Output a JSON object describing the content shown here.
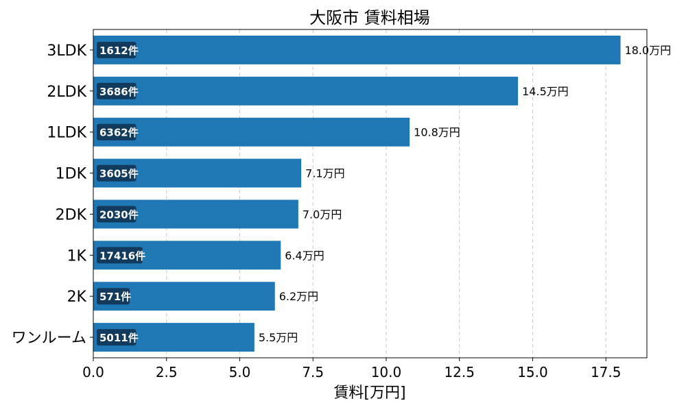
{
  "chart_data": {
    "type": "bar",
    "orientation": "horizontal",
    "title": "大阪市 賃料相場",
    "xlabel": "賃料[万円]",
    "ylabel": "",
    "xlim": [
      0,
      18.9
    ],
    "xticks": [
      0.0,
      2.5,
      5.0,
      7.5,
      10.0,
      12.5,
      15.0,
      17.5
    ],
    "xtick_labels": [
      "0.0",
      "2.5",
      "5.0",
      "7.5",
      "10.0",
      "12.5",
      "15.0",
      "17.5"
    ],
    "grid": "vertical dashed",
    "bar_color": "#1f77b4",
    "count_badge_color": "#123a5c",
    "categories": [
      "3LDK",
      "2LDK",
      "1LDK",
      "1DK",
      "2DK",
      "1K",
      "2K",
      "ワンルーム"
    ],
    "values": [
      18.0,
      14.5,
      10.8,
      7.1,
      7.0,
      6.4,
      6.2,
      5.5
    ],
    "value_labels": [
      "18.0万円",
      "14.5万円",
      "10.8万円",
      "7.1万円",
      "7.0万円",
      "6.4万円",
      "6.2万円",
      "5.5万円"
    ],
    "count_labels": [
      "1612件",
      "3686件",
      "6362件",
      "3605件",
      "2030件",
      "17416件",
      "571件",
      "5011件"
    ]
  }
}
